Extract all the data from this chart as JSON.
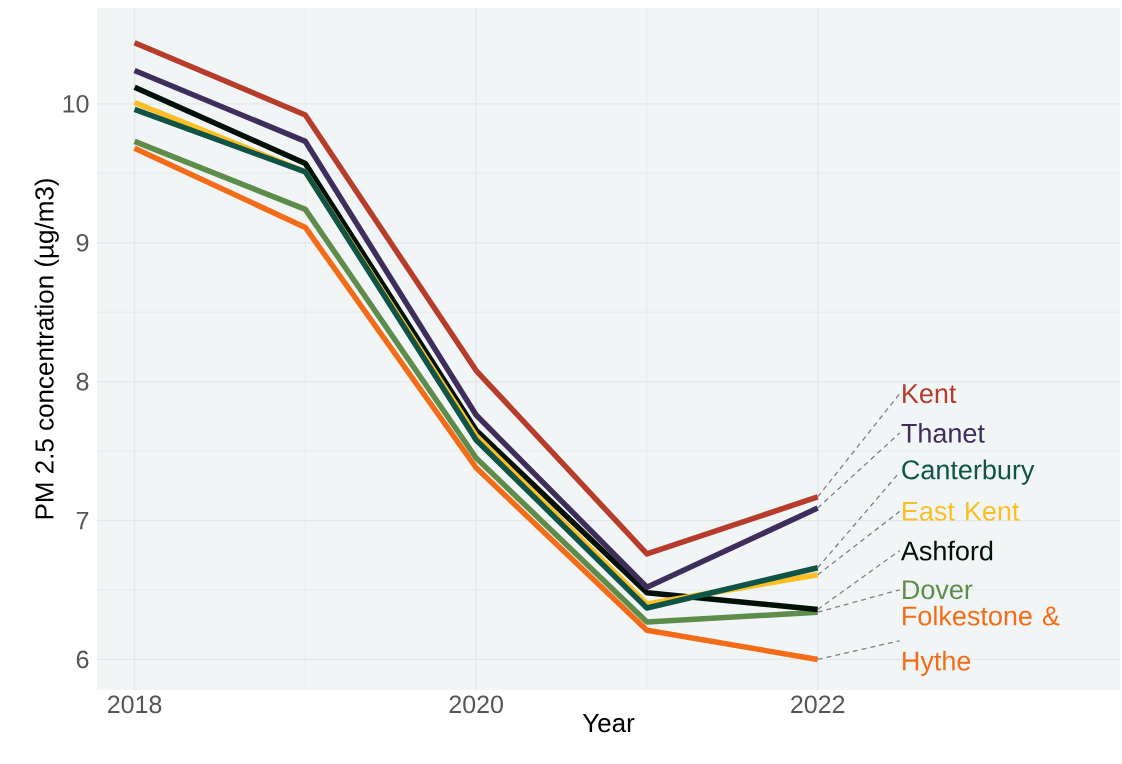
{
  "chart_data": {
    "type": "line",
    "xlabel": "Year",
    "ylabel": "PM 2.5 concentration (µg/m3)",
    "x": [
      2018,
      2019,
      2020,
      2021,
      2022
    ],
    "series": [
      {
        "name": "Kent",
        "color": "#b83c2b",
        "values": [
          10.44,
          9.92,
          8.08,
          6.76,
          7.17
        ]
      },
      {
        "name": "Thanet",
        "color": "#3f2d5c",
        "values": [
          10.24,
          9.73,
          7.76,
          6.52,
          7.09
        ]
      },
      {
        "name": "Canterbury",
        "color": "#0f5446",
        "values": [
          9.96,
          9.51,
          7.58,
          6.37,
          6.66
        ]
      },
      {
        "name": "East Kent",
        "color": "#fbbf24",
        "values": [
          10.01,
          9.51,
          7.61,
          6.4,
          6.61
        ]
      },
      {
        "name": "Ashford",
        "color": "#001107",
        "values": [
          10.12,
          9.57,
          7.65,
          6.48,
          6.36
        ]
      },
      {
        "name": "Dover",
        "color": "#5e8c4a",
        "values": [
          9.73,
          9.24,
          7.45,
          6.27,
          6.34
        ]
      },
      {
        "name": "Folkestone & Hythe",
        "color": "#f46c17",
        "values": [
          9.68,
          9.11,
          7.38,
          6.21,
          6.0
        ]
      }
    ],
    "xlim": [
      2017.78,
      2023.77
    ],
    "ylim": [
      5.78,
      10.69
    ],
    "xticks": [
      2018,
      2020,
      2022
    ],
    "yticks": [
      6,
      7,
      8,
      9,
      10
    ],
    "grid": true,
    "line_style": "solid",
    "marker": "none"
  }
}
